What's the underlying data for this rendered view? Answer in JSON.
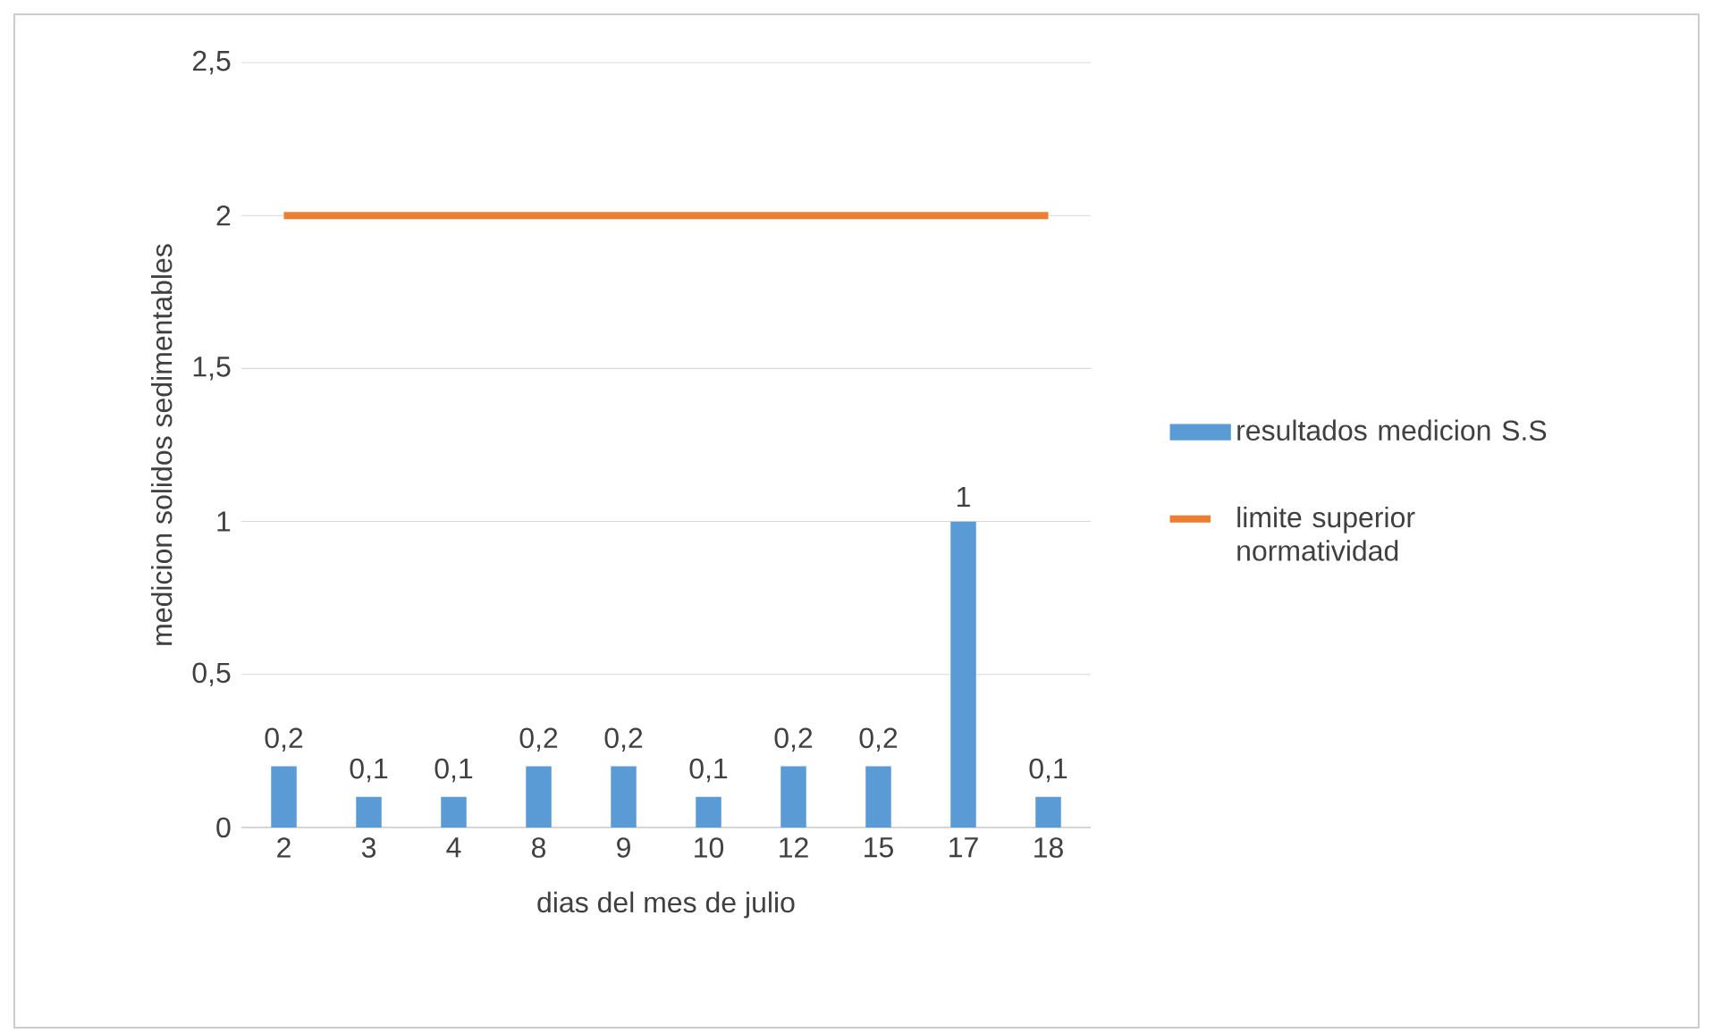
{
  "chart_data": {
    "type": "bar",
    "xlabel": "dias del mes de julio",
    "ylabel": "medicion solidos sedimentables",
    "categories": [
      "2",
      "3",
      "4",
      "8",
      "9",
      "10",
      "12",
      "15",
      "17",
      "18"
    ],
    "series": [
      {
        "name": "resultados medicion  S.S",
        "color": "#5b9bd5",
        "values": [
          0.2,
          0.1,
          0.1,
          0.2,
          0.2,
          0.1,
          0.2,
          0.2,
          1,
          0.1
        ],
        "value_labels": [
          "0,2",
          "0,1",
          "0,1",
          "0,2",
          "0,2",
          "0,1",
          "0,2",
          "0,2",
          "1",
          "0,1"
        ]
      },
      {
        "name": "limite superior normatividad",
        "type": "line",
        "color": "#ed7d31",
        "values": [
          2,
          2,
          2,
          2,
          2,
          2,
          2,
          2,
          2,
          2
        ]
      }
    ],
    "ylim": [
      0,
      2.5
    ],
    "yticks": [
      0,
      {
        "value": 0.5,
        "label": "0,5"
      },
      1,
      {
        "value": 1.5,
        "label": "1,5"
      },
      2,
      {
        "value": 2.5,
        "label": "2,5"
      }
    ],
    "grid": "y",
    "legend": "right",
    "marker": "none"
  }
}
